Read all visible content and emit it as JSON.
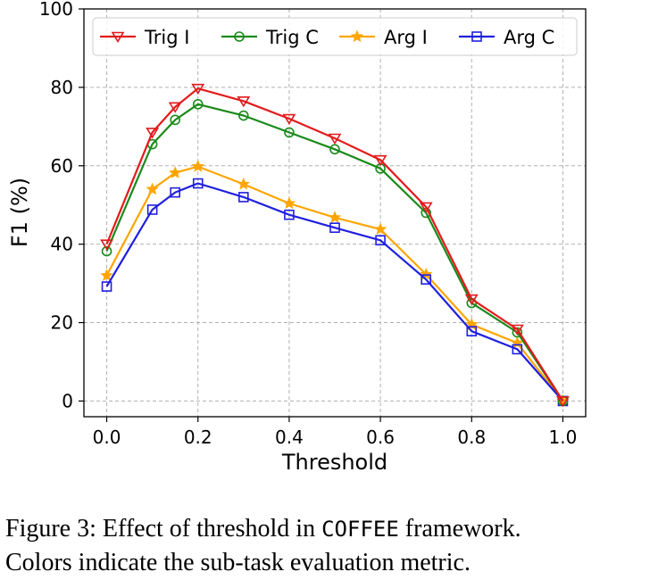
{
  "chart_data": {
    "type": "line",
    "title": "",
    "xlabel": "Threshold",
    "ylabel": "F1 (%)",
    "xlim": [
      -0.05,
      1.05
    ],
    "ylim": [
      -4,
      100
    ],
    "xticks": [
      "0.0",
      "0.2",
      "0.4",
      "0.6",
      "0.8",
      "1.0"
    ],
    "xtick_values": [
      0.0,
      0.2,
      0.4,
      0.6,
      0.8,
      1.0
    ],
    "yticks": [
      "0",
      "20",
      "40",
      "60",
      "80",
      "100"
    ],
    "ytick_values": [
      0,
      20,
      40,
      60,
      80,
      100
    ],
    "grid": true,
    "legend_position": "top",
    "x": [
      0.0,
      0.1,
      0.15,
      0.2,
      0.3,
      0.4,
      0.5,
      0.6,
      0.7,
      0.8,
      0.9,
      1.0
    ],
    "series": [
      {
        "name": "Trig I",
        "color": "#e31a1c",
        "marker": "triangle-down",
        "values": [
          40,
          68.5,
          75,
          79.7,
          76.5,
          72,
          67,
          61.5,
          49.5,
          26,
          18.3,
          0
        ]
      },
      {
        "name": "Trig C",
        "color": "#1a8a1a",
        "marker": "circle",
        "values": [
          38.2,
          65.5,
          71.7,
          75.7,
          72.8,
          68.5,
          64.2,
          59.3,
          48,
          25,
          17.5,
          0
        ]
      },
      {
        "name": "Arg I",
        "color": "#ffa500",
        "marker": "star",
        "values": [
          32,
          54,
          58.2,
          59.8,
          55.3,
          50.4,
          46.8,
          43.8,
          32.3,
          19.5,
          14.8,
          0
        ]
      },
      {
        "name": "Arg C",
        "color": "#1f1fe0",
        "marker": "square",
        "values": [
          29.2,
          48.8,
          53.2,
          55.5,
          52,
          47.5,
          44.2,
          41,
          31,
          17.8,
          13.2,
          0
        ]
      }
    ]
  },
  "caption": {
    "prefix": "Figure 3: ",
    "text1": "Effect of threshold in ",
    "code": "COFFEE",
    "text2": " framework.",
    "line2": "Colors indicate the sub-task evaluation metric."
  }
}
